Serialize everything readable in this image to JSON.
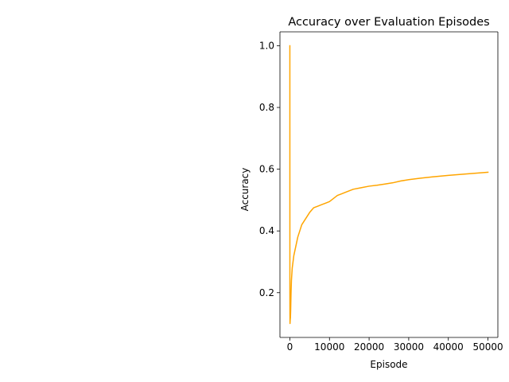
{
  "chart_data": {
    "type": "line",
    "title": "Accuracy over Evaluation Episodes",
    "xlabel": "Episode",
    "ylabel": "Accuracy",
    "xlim": [
      -2500,
      52500
    ],
    "ylim": [
      0.055,
      1.045
    ],
    "xticks": [
      0,
      10000,
      20000,
      30000,
      40000,
      50000
    ],
    "yticks": [
      0.2,
      0.4,
      0.6,
      0.8,
      1.0
    ],
    "xtick_labels": [
      "0",
      "10000",
      "20000",
      "30000",
      "40000",
      "50000"
    ],
    "ytick_labels": [
      "0.2",
      "0.4",
      "0.6",
      "0.8",
      "1.0"
    ],
    "grid": false,
    "series": [
      {
        "color": "#ffa500",
        "x": [
          1,
          5,
          10,
          20,
          40,
          80,
          150,
          200,
          300,
          400,
          600,
          800,
          1000,
          1500,
          2000,
          2500,
          3000,
          4000,
          5000,
          6000,
          7000,
          8000,
          9000,
          10000,
          11000,
          12000,
          13000,
          14000,
          16000,
          18000,
          20000,
          22000,
          24000,
          26000,
          28000,
          30000,
          33000,
          36000,
          40000,
          45000,
          50000
        ],
        "values": [
          1.0,
          0.5,
          0.2,
          0.13,
          0.1,
          0.11,
          0.12,
          0.14,
          0.2,
          0.24,
          0.28,
          0.3,
          0.32,
          0.35,
          0.38,
          0.4,
          0.42,
          0.44,
          0.46,
          0.475,
          0.48,
          0.485,
          0.49,
          0.495,
          0.505,
          0.515,
          0.52,
          0.525,
          0.535,
          0.54,
          0.545,
          0.548,
          0.552,
          0.556,
          0.562,
          0.566,
          0.571,
          0.575,
          0.58,
          0.585,
          0.59
        ]
      }
    ]
  }
}
